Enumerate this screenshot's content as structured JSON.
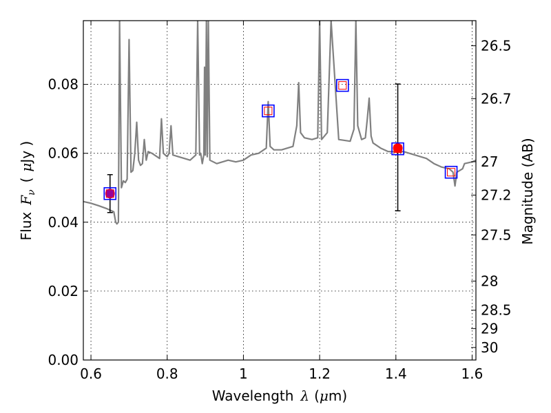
{
  "chart_data": {
    "type": "line",
    "xlabel": "Wavelength",
    "xlabel_symbol": "λ",
    "xlabel_unit_open": "(",
    "xlabel_unit_mu": "μ",
    "xlabel_unit_rest": "m)",
    "ylabel": "Flux",
    "ylabel_symbol": "F",
    "ylabel_subscript": "ν",
    "ylabel_unit_open": "(",
    "ylabel_unit_mu": "μ",
    "ylabel_unit_rest": "Jy )",
    "y2label": "Magnitude (AB)",
    "xlim": [
      0.58,
      1.61
    ],
    "ylim": [
      0,
      0.0985
    ],
    "grid": true,
    "x_ticks": [
      {
        "value": 0.6,
        "label": "0.6"
      },
      {
        "value": 0.8,
        "label": "0.8"
      },
      {
        "value": 1.0,
        "label": "1"
      },
      {
        "value": 1.2,
        "label": "1.2"
      },
      {
        "value": 1.4,
        "label": "1.4"
      },
      {
        "value": 1.6,
        "label": "1.6"
      }
    ],
    "y_ticks": [
      {
        "value": 0.0,
        "label": "0.00"
      },
      {
        "value": 0.02,
        "label": "0.02"
      },
      {
        "value": 0.04,
        "label": "0.04"
      },
      {
        "value": 0.06,
        "label": "0.06"
      },
      {
        "value": 0.08,
        "label": "0.08"
      }
    ],
    "y2_ticks": [
      {
        "value": 26.5,
        "label": "26.5"
      },
      {
        "value": 26.7,
        "label": "26.7"
      },
      {
        "value": 27.0,
        "label": "27"
      },
      {
        "value": 27.2,
        "label": "27.2"
      },
      {
        "value": 27.5,
        "label": "27.5"
      },
      {
        "value": 28.0,
        "label": "28"
      },
      {
        "value": 28.5,
        "label": "28.5"
      },
      {
        "value": 29.0,
        "label": "29"
      },
      {
        "value": 30.0,
        "label": "30"
      }
    ],
    "series": [
      {
        "kind": "model-spectrum",
        "color": "#808080",
        "x": [
          0.58,
          0.6,
          0.62,
          0.64,
          0.66,
          0.665,
          0.668,
          0.672,
          0.675,
          0.68,
          0.685,
          0.69,
          0.695,
          0.7,
          0.705,
          0.71,
          0.715,
          0.72,
          0.725,
          0.73,
          0.735,
          0.74,
          0.745,
          0.75,
          0.76,
          0.78,
          0.785,
          0.79,
          0.8,
          0.805,
          0.81,
          0.815,
          0.83,
          0.86,
          0.875,
          0.88,
          0.885,
          0.888,
          0.892,
          0.896,
          0.898,
          0.9,
          0.903,
          0.905,
          0.908,
          0.912,
          0.93,
          0.96,
          0.98,
          1.0,
          1.02,
          1.04,
          1.06,
          1.065,
          1.07,
          1.08,
          1.1,
          1.13,
          1.14,
          1.145,
          1.15,
          1.16,
          1.18,
          1.195,
          1.2,
          1.205,
          1.22,
          1.23,
          1.25,
          1.28,
          1.29,
          1.295,
          1.3,
          1.31,
          1.32,
          1.325,
          1.33,
          1.335,
          1.34,
          1.36,
          1.38,
          1.4,
          1.42,
          1.45,
          1.48,
          1.5,
          1.52,
          1.54,
          1.545,
          1.55,
          1.555,
          1.56,
          1.575,
          1.58,
          1.6,
          1.61
        ],
        "y": [
          0.046,
          0.0455,
          0.0448,
          0.044,
          0.043,
          0.04,
          0.0395,
          0.04,
          0.0985,
          0.05,
          0.052,
          0.0515,
          0.0525,
          0.093,
          0.0545,
          0.055,
          0.06,
          0.069,
          0.058,
          0.0565,
          0.057,
          0.064,
          0.058,
          0.0605,
          0.06,
          0.0585,
          0.07,
          0.06,
          0.059,
          0.06,
          0.068,
          0.0595,
          0.059,
          0.058,
          0.0595,
          0.0985,
          0.0595,
          0.06,
          0.057,
          0.0595,
          0.085,
          0.0595,
          0.0985,
          0.059,
          0.0985,
          0.058,
          0.057,
          0.058,
          0.0575,
          0.058,
          0.0595,
          0.06,
          0.0615,
          0.075,
          0.062,
          0.061,
          0.061,
          0.062,
          0.068,
          0.0805,
          0.066,
          0.0645,
          0.064,
          0.0645,
          0.0985,
          0.064,
          0.066,
          0.0985,
          0.064,
          0.0635,
          0.067,
          0.0985,
          0.068,
          0.064,
          0.0645,
          0.07,
          0.076,
          0.065,
          0.063,
          0.0615,
          0.0605,
          0.0605,
          0.0605,
          0.0595,
          0.0585,
          0.057,
          0.056,
          0.0555,
          0.055,
          0.0545,
          0.0505,
          0.0545,
          0.0555,
          0.057,
          0.0575,
          0.058
        ]
      }
    ],
    "model_points": [
      {
        "x": 0.65,
        "y": 0.0483
      },
      {
        "x": 1.065,
        "y": 0.0723
      },
      {
        "x": 1.26,
        "y": 0.0797
      },
      {
        "x": 1.405,
        "y": 0.0613
      },
      {
        "x": 1.545,
        "y": 0.0545
      }
    ],
    "observed_points": [
      {
        "x": 0.65,
        "y": 0.0483,
        "err_low": 0.0428,
        "err_high": 0.0538,
        "color": "#990099"
      },
      {
        "x": 1.405,
        "y": 0.0615,
        "err_low": 0.0433,
        "err_high": 0.0801,
        "color": "#ff0000"
      }
    ]
  }
}
